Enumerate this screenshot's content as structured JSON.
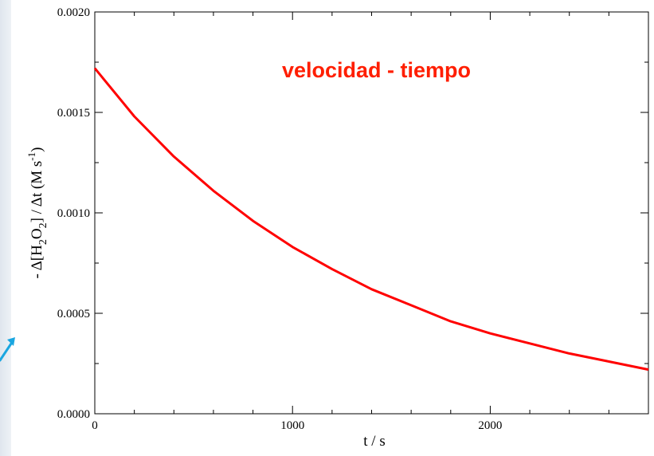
{
  "chart_data": {
    "type": "line",
    "title": "velocidad - tiempo",
    "title_color": "#ff1e00",
    "xlabel": "t / s",
    "ylabel": {
      "pre": "- Δ[H",
      "sub1": "2",
      "mid": "O",
      "sub2": "2",
      "post": "] / Δt   (M s",
      "sup": "-1",
      "end": ")"
    },
    "xlim": [
      0,
      2800
    ],
    "ylim": [
      0,
      0.002
    ],
    "x_ticks": [
      0,
      1000,
      2000
    ],
    "x_tick_labels": [
      "0",
      "1000",
      "2000"
    ],
    "y_ticks": [
      0,
      0.0005,
      0.001,
      0.0015,
      0.002
    ],
    "y_tick_labels": [
      "0.0000",
      "0.0005",
      "0.0010",
      "0.0015",
      "0.0020"
    ],
    "x_minor_step": 200,
    "y_minor_step": 0.00025,
    "grid": false,
    "series": [
      {
        "color": "#ff0000",
        "x": [
          0,
          200,
          400,
          600,
          800,
          1000,
          1200,
          1400,
          1600,
          1800,
          2000,
          2200,
          2400,
          2600,
          2800
        ],
        "y": [
          0.00172,
          0.00148,
          0.00128,
          0.00111,
          0.00096,
          0.00083,
          0.00072,
          0.00062,
          0.00054,
          0.00046,
          0.0004,
          0.00035,
          0.0003,
          0.00026,
          0.00022
        ]
      }
    ]
  },
  "decorations": {
    "arrow_color": "#1aa6e0"
  }
}
